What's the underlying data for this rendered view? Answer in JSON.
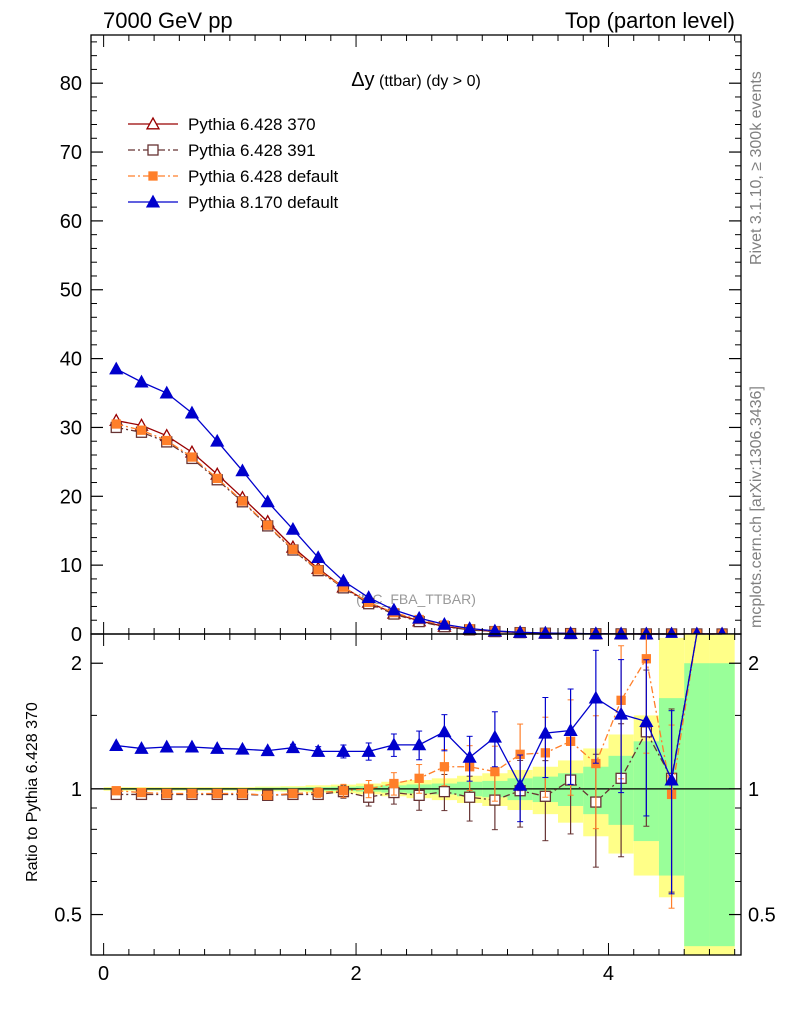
{
  "header": {
    "left": "7000 GeV pp",
    "right": "Top (parton level)"
  },
  "side_text": {
    "rivet": "Rivet 3.1.10, ≥ 300k events",
    "mcplots": "mcplots.cern.ch [arXiv:1306.3436]"
  },
  "chart_data": [
    {
      "type": "line",
      "title_main": "Δy",
      "title_small": " (ttbar) (dy > 0)",
      "watermark": "(MC_FBA_TTBAR)",
      "xlim": [
        -0.1,
        5.05
      ],
      "ylim": [
        0,
        87
      ],
      "yticks": [
        0,
        10,
        20,
        30,
        40,
        50,
        60,
        70,
        80
      ],
      "ytick_labels": [
        "0",
        "10",
        "20",
        "30",
        "40",
        "50",
        "60",
        "70",
        "80"
      ],
      "x": [
        0.1,
        0.3,
        0.5,
        0.7,
        0.9,
        1.1,
        1.3,
        1.5,
        1.7,
        1.9,
        2.1,
        2.3,
        2.5,
        2.7,
        2.9,
        3.1,
        3.3,
        3.5,
        3.7,
        3.9,
        4.1,
        4.3,
        4.5,
        4.7,
        4.9
      ],
      "series": [
        {
          "name": "Pythia 6.428 370",
          "color": "#990000",
          "marker": "open-triangle",
          "dash": "",
          "values": [
            31.0,
            30.3,
            28.8,
            26.4,
            23.2,
            19.8,
            16.3,
            12.6,
            9.5,
            6.8,
            4.6,
            3.0,
            1.9,
            1.1,
            0.65,
            0.37,
            0.21,
            0.11,
            0.06,
            0.03,
            0.015,
            0.008,
            0.004,
            0.002,
            0.001
          ]
        },
        {
          "name": "Pythia 6.428 391",
          "color": "#663333",
          "marker": "open-square",
          "dash": "7,3,2,3",
          "values": [
            30.0,
            29.3,
            27.9,
            25.5,
            22.4,
            19.2,
            15.7,
            12.2,
            9.2,
            6.7,
            4.4,
            2.9,
            1.8,
            1.06,
            0.6,
            0.35,
            0.2,
            0.11,
            0.06,
            0.03,
            0.015,
            0.008,
            0.004,
            0.002,
            0.001
          ]
        },
        {
          "name": "Pythia 6.428 default",
          "color": "#ff7f2a",
          "marker": "filled-square",
          "dash": "7,3,2,3",
          "values": [
            30.5,
            29.6,
            28.1,
            25.7,
            22.6,
            19.3,
            15.8,
            12.3,
            9.3,
            6.8,
            4.6,
            3.1,
            2.1,
            1.3,
            0.76,
            0.43,
            0.25,
            0.14,
            0.08,
            0.04,
            0.02,
            0.01,
            0.005,
            0.003,
            0.001
          ]
        },
        {
          "name": "Pythia 8.170 default",
          "color": "#0000cc",
          "marker": "filled-triangle",
          "dash": "",
          "values": [
            38.5,
            36.6,
            35.0,
            32.1,
            28.0,
            23.7,
            19.2,
            15.2,
            11.1,
            7.7,
            5.3,
            3.5,
            2.3,
            1.4,
            0.8,
            0.45,
            0.25,
            0.14,
            0.08,
            0.04,
            0.02,
            0.01,
            0.005,
            0.003,
            0.001
          ]
        }
      ]
    },
    {
      "type": "line",
      "ylabel": "Ratio to Pythia 6.428 370",
      "scale": "log",
      "ylim": [
        0.4,
        2.35
      ],
      "yticks": [
        0.5,
        1,
        2
      ],
      "ytick_labels": [
        "0.5",
        "1",
        "2"
      ],
      "xlim": [
        -0.1,
        5.05
      ],
      "xticks": [
        0,
        2,
        4
      ],
      "xtick_labels": [
        "0",
        "2",
        "4"
      ],
      "x": [
        0.1,
        0.3,
        0.5,
        0.7,
        0.9,
        1.1,
        1.3,
        1.5,
        1.7,
        1.9,
        2.1,
        2.3,
        2.5,
        2.7,
        2.9,
        3.1,
        3.3,
        3.5,
        3.7,
        3.9,
        4.1,
        4.3,
        4.5,
        4.7,
        4.9
      ],
      "bands": {
        "green": {
          "color": "#99ff99",
          "low": [
            0.995,
            0.995,
            0.995,
            0.995,
            0.995,
            0.995,
            0.993,
            0.992,
            0.99,
            0.988,
            0.985,
            0.98,
            0.975,
            0.97,
            0.96,
            0.955,
            0.94,
            0.93,
            0.91,
            0.87,
            0.82,
            0.75,
            0.62,
            0.42,
            0.42
          ],
          "high": [
            1.005,
            1.005,
            1.005,
            1.005,
            1.005,
            1.005,
            1.007,
            1.008,
            1.01,
            1.012,
            1.015,
            1.02,
            1.025,
            1.03,
            1.04,
            1.045,
            1.06,
            1.07,
            1.09,
            1.13,
            1.2,
            1.3,
            1.65,
            2.0,
            2.0
          ]
        },
        "yellow": {
          "color": "#ffff88",
          "low": [
            0.99,
            0.99,
            0.99,
            0.99,
            0.99,
            0.99,
            0.987,
            0.985,
            0.98,
            0.976,
            0.97,
            0.96,
            0.95,
            0.94,
            0.925,
            0.91,
            0.89,
            0.87,
            0.83,
            0.77,
            0.7,
            0.62,
            0.55,
            0.4,
            0.4
          ],
          "high": [
            1.01,
            1.01,
            1.01,
            1.01,
            1.01,
            1.01,
            1.013,
            1.015,
            1.02,
            1.024,
            1.03,
            1.04,
            1.05,
            1.06,
            1.075,
            1.09,
            1.11,
            1.13,
            1.17,
            1.25,
            1.35,
            1.5,
            2.3,
            2.35,
            2.35
          ]
        }
      },
      "series": [
        {
          "name": "Pythia 6.428 391",
          "values": [
            0.97,
            0.97,
            0.97,
            0.97,
            0.97,
            0.97,
            0.965,
            0.97,
            0.97,
            0.985,
            0.955,
            0.98,
            0.965,
            0.985,
            0.955,
            0.94,
            0.99,
            0.96,
            1.05,
            0.93,
            1.06,
            1.37,
            1.06,
            2.35,
            2.35
          ]
        },
        {
          "name": "Pythia 6.428 default",
          "values": [
            0.99,
            0.98,
            0.975,
            0.975,
            0.975,
            0.975,
            0.965,
            0.975,
            0.98,
            0.99,
            1.0,
            1.03,
            1.06,
            1.13,
            1.13,
            1.1,
            1.21,
            1.22,
            1.3,
            1.15,
            1.63,
            2.05,
            0.97,
            2.35,
            2.35
          ]
        },
        {
          "name": "Pythia 8.170 default",
          "values": [
            1.27,
            1.25,
            1.26,
            1.26,
            1.25,
            1.245,
            1.235,
            1.255,
            1.23,
            1.23,
            1.23,
            1.275,
            1.275,
            1.37,
            1.19,
            1.33,
            1.02,
            1.36,
            1.38,
            1.65,
            1.51,
            1.45,
            1.05,
            2.35,
            2.35
          ]
        }
      ]
    }
  ]
}
